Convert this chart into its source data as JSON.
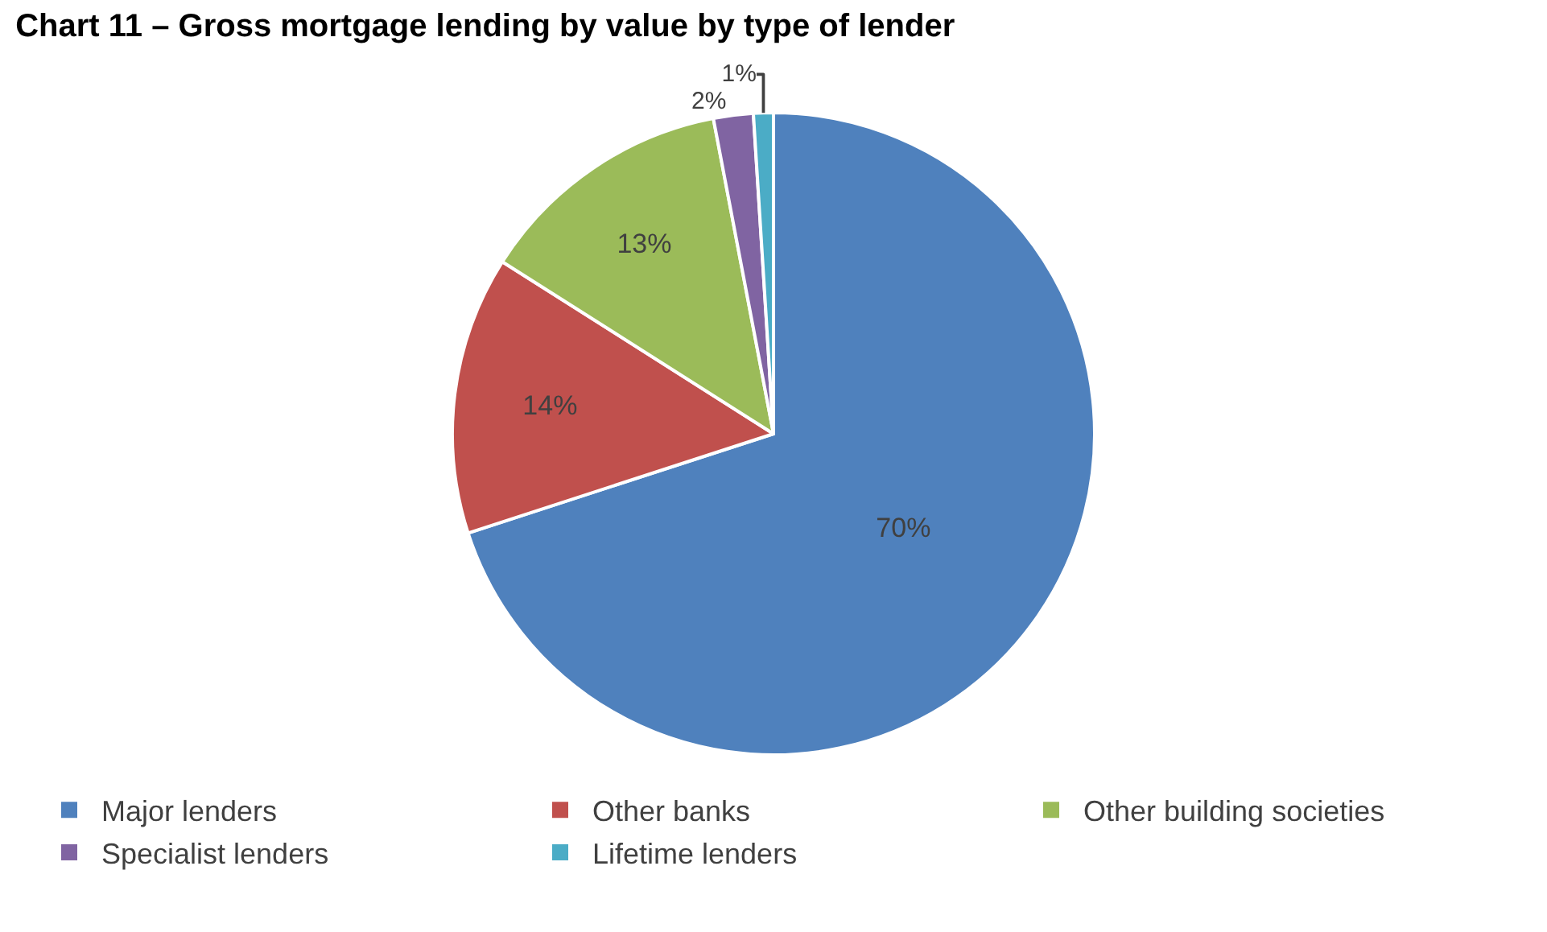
{
  "chart_data": {
    "type": "pie",
    "title": "Chart 11 – Gross mortgage lending by value by type of lender",
    "categories": [
      "Major lenders",
      "Other banks",
      "Other building societies",
      "Specialist lenders",
      "Lifetime lenders"
    ],
    "values": [
      70,
      14,
      13,
      2,
      1
    ],
    "colors": [
      "#4f81bd",
      "#c0504d",
      "#9bbb59",
      "#8064a2",
      "#4bacc6"
    ],
    "value_labels": [
      "70%",
      "14%",
      "13%",
      "2%",
      "1%"
    ],
    "legend": "bottom"
  }
}
